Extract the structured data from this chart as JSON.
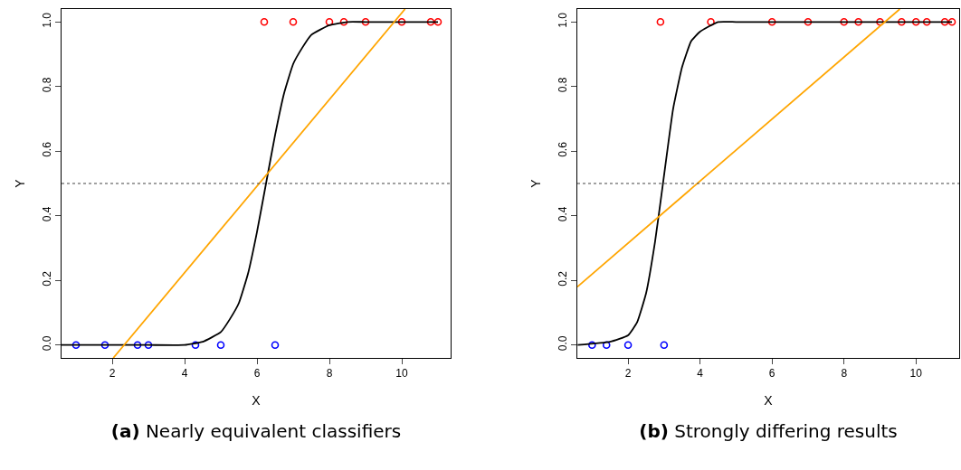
{
  "chart_data": [
    {
      "type": "scatter",
      "title": "(a) Nearly equivalent classifiers",
      "xlabel": "X",
      "ylabel": "Y",
      "xlim": [
        0.6,
        11.35
      ],
      "ylim": [
        -0.04,
        1.04
      ],
      "xticks": [
        2,
        4,
        6,
        8,
        10
      ],
      "yticks": [
        {
          "value": 0,
          "label": "0.0"
        },
        {
          "value": 0.2,
          "label": "0.2"
        },
        {
          "value": 0.4,
          "label": "0.4"
        },
        {
          "value": 0.6,
          "label": "0.6"
        },
        {
          "value": 0.8,
          "label": "0.8"
        },
        {
          "value": 1,
          "label": "1.0"
        }
      ],
      "grid": false,
      "ref_lines": [
        {
          "axis": "y",
          "value": 0.5,
          "color": "#444444",
          "line_style": "dotted"
        }
      ],
      "series": [
        {
          "marker": "circle",
          "color": "#0000ff",
          "x": [
            1,
            1.8,
            2.7,
            3,
            4.3,
            5,
            6.5
          ],
          "values": [
            0,
            0,
            0,
            0,
            0,
            0,
            0
          ]
        },
        {
          "marker": "circle",
          "color": "#ff0000",
          "x": [
            6.2,
            7,
            8,
            8.4,
            9,
            10,
            10.8,
            11
          ],
          "values": [
            1,
            1,
            1,
            1,
            1,
            1,
            1,
            1
          ]
        },
        {
          "type": "line",
          "marker": "none",
          "color": "#000000",
          "line_style": "solid",
          "x": [
            0.6,
            2,
            3,
            4,
            4.5,
            5,
            5.25,
            5.5,
            5.75,
            6,
            6.25,
            6.5,
            6.75,
            7,
            7.25,
            7.5,
            8,
            8.5,
            9,
            10,
            11
          ],
          "values": [
            0,
            0,
            0,
            0,
            0.01,
            0.04,
            0.08,
            0.13,
            0.22,
            0.35,
            0.5,
            0.65,
            0.78,
            0.87,
            0.92,
            0.96,
            0.99,
            1,
            1,
            1,
            1
          ]
        },
        {
          "type": "line",
          "marker": "none",
          "color": "#ffa500",
          "line_style": "solid",
          "x": [
            2.03,
            10.09
          ],
          "values": [
            -0.04,
            1.04
          ]
        }
      ]
    },
    {
      "type": "scatter",
      "title": "(b) Strongly differing results",
      "xlabel": "X",
      "ylabel": "Y",
      "xlim": [
        0.59,
        11.2
      ],
      "ylim": [
        -0.04,
        1.04
      ],
      "xticks": [
        2,
        4,
        6,
        8,
        10
      ],
      "yticks": [
        {
          "value": 0,
          "label": "0.0"
        },
        {
          "value": 0.2,
          "label": "0.2"
        },
        {
          "value": 0.4,
          "label": "0.4"
        },
        {
          "value": 0.6,
          "label": "0.6"
        },
        {
          "value": 0.8,
          "label": "0.8"
        },
        {
          "value": 1,
          "label": "1.0"
        }
      ],
      "grid": false,
      "ref_lines": [
        {
          "axis": "y",
          "value": 0.5,
          "color": "#444444",
          "line_style": "dotted"
        }
      ],
      "series": [
        {
          "marker": "circle",
          "color": "#0000ff",
          "x": [
            1,
            1.4,
            2,
            3
          ],
          "values": [
            0,
            0,
            0,
            0
          ]
        },
        {
          "marker": "circle",
          "color": "#ff0000",
          "x": [
            2.9,
            4.3,
            6,
            7,
            8,
            8.4,
            9,
            9.6,
            10,
            10.3,
            10.8,
            11
          ],
          "values": [
            1,
            1,
            1,
            1,
            1,
            1,
            1,
            1,
            1,
            1,
            1,
            1
          ]
        },
        {
          "type": "line",
          "marker": "none",
          "color": "#000000",
          "line_style": "solid",
          "x": [
            0.6,
            1.5,
            2,
            2.25,
            2.5,
            2.75,
            2.97,
            3.25,
            3.5,
            3.75,
            4,
            4.5,
            5,
            6,
            8,
            11
          ],
          "values": [
            0,
            0.01,
            0.03,
            0.07,
            0.16,
            0.32,
            0.5,
            0.73,
            0.86,
            0.94,
            0.97,
            1,
            1,
            1,
            1,
            1
          ]
        },
        {
          "type": "line",
          "marker": "none",
          "color": "#ffa500",
          "line_style": "solid",
          "x": [
            0.59,
            9.55
          ],
          "values": [
            0.18,
            1.04
          ]
        }
      ]
    }
  ]
}
